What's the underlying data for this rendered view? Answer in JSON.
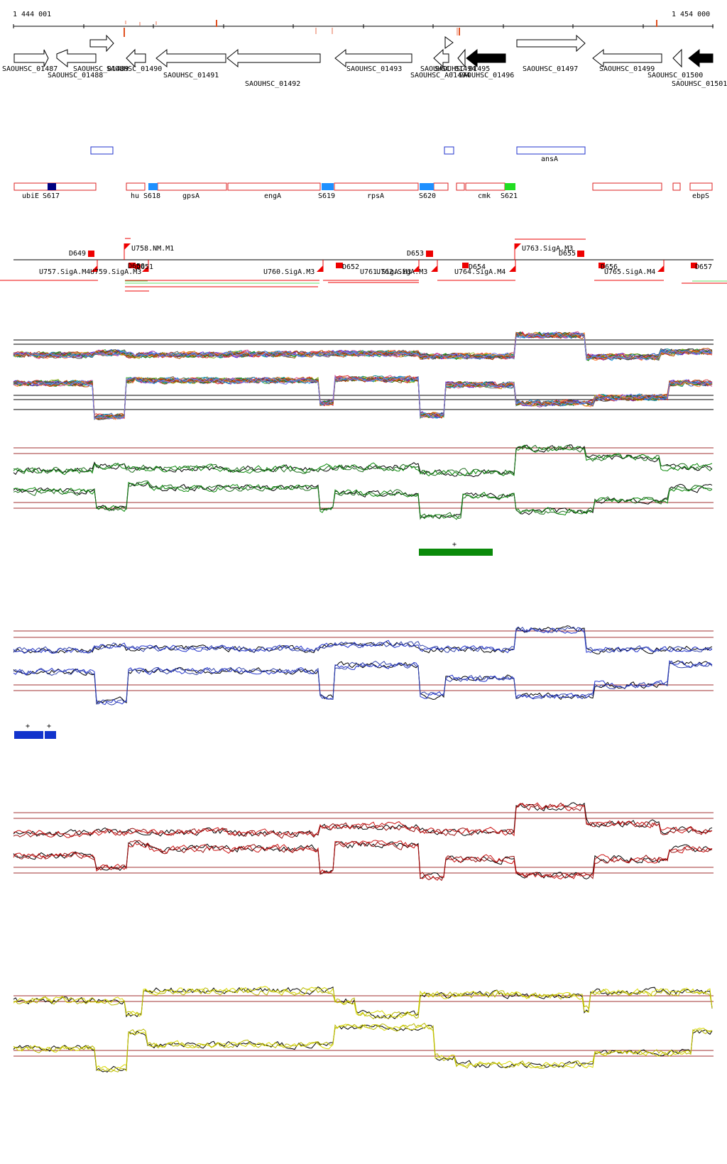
{
  "coordinates": {
    "start": "1 444 001",
    "end": "1 454 000"
  },
  "genes": [
    {
      "label": "SAOUHSC_01487"
    },
    {
      "label": "SAOUHSC_01488"
    },
    {
      "label": "SAOUHSC_01489"
    },
    {
      "label": "SAOUHSC_01490"
    },
    {
      "label": "SAOUHSC_01491"
    },
    {
      "label": "SAOUHSC_01492"
    },
    {
      "label": "SAOUHSC_01493"
    },
    {
      "label": "SAOUHSC_01494"
    },
    {
      "label": "SAOUHSC_A01494"
    },
    {
      "label": "SAOUHSC_01495"
    },
    {
      "label": "SAOUHSC_01496"
    },
    {
      "label": "SAOUHSC_01497"
    },
    {
      "label": "SAOUHSC_01499"
    },
    {
      "label": "SAOUHSC_01500"
    },
    {
      "label": "SAOUHSC_01501"
    }
  ],
  "blue_features": {
    "label": "ansA"
  },
  "operons": {
    "labels": [
      "ubiE",
      "S617",
      "hu",
      "S618",
      "gpsA",
      "engA",
      "S619",
      "rpsA",
      "S620",
      "cmk",
      "S621",
      "ebpS"
    ]
  },
  "tus": {
    "labels": [
      "D649",
      "U757.SigA.M4",
      "U758.NM.M1",
      "U759.SigA.M3",
      "D650",
      "D651",
      "U760.SigA.M3",
      "D652",
      "U761.SigA.M3",
      "U762.SigA.M3",
      "D653",
      "D654",
      "U764.SigA.M4",
      "U763.SigA.M3",
      "D655",
      "D656",
      "U765.SigA.M4",
      "D657"
    ]
  },
  "tracks": {
    "colors": {
      "green": "#0a8a0a",
      "blue": "#2233cc",
      "red": "#cc1111",
      "yellow": "#d8d800",
      "black": "#000000",
      "threshold": "#a03030"
    },
    "green_marker": "+",
    "blue_markers": [
      "+",
      "+"
    ]
  }
}
